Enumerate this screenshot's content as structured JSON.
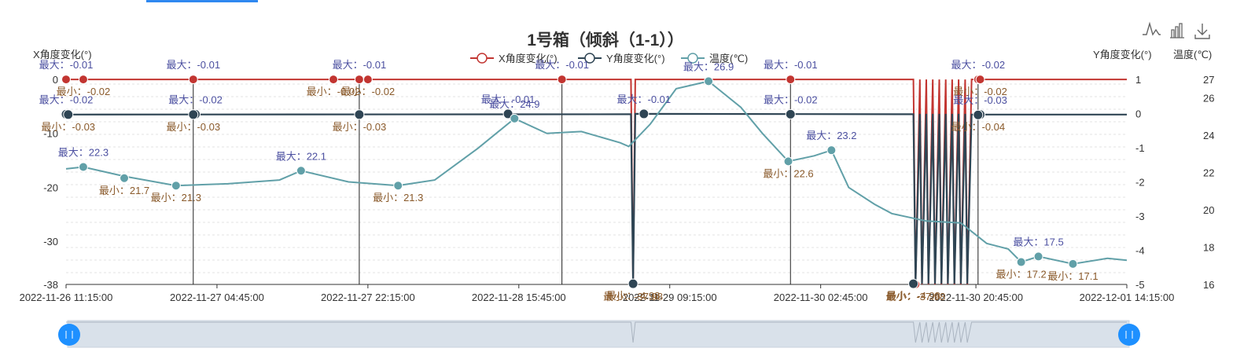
{
  "chart_data": {
    "type": "line",
    "title": "1号箱（倾斜（1-1））",
    "legend_position": "top-center",
    "legend": [
      "X角度变化(°)",
      "Y角度变化(°)",
      "温度(℃)"
    ],
    "grid": true,
    "y_axes": {
      "left": {
        "label": "X角度变化(°)",
        "ticks": [
          "0",
          "-10",
          "-20",
          "-30",
          "-38"
        ],
        "range": [
          -38,
          0
        ]
      },
      "right": {
        "label": "Y角度变化(°)",
        "ticks": [
          "1",
          "0",
          "-1",
          "-2",
          "-3",
          "-4",
          "-5"
        ],
        "range": [
          -5,
          1
        ]
      },
      "right2": {
        "label": "温度(℃)",
        "ticks": [
          "27",
          "26",
          "24",
          "22",
          "20",
          "18",
          "16"
        ],
        "range": [
          16,
          27
        ]
      }
    },
    "x_axis": {
      "range": [
        "2022-11-26 11:15:00",
        "2022-12-01 14:15:00"
      ],
      "ticks": [
        "2022-11-26 11:15:00",
        "2022-11-27 04:45:00",
        "2022-11-27 22:15:00",
        "2022-11-28 15:45:00",
        "2022-11-29 09:15:00",
        "2022-11-30 02:45:00",
        "2022-11-30 20:45:00",
        "2022-12-01 14:15:00"
      ]
    },
    "series": [
      {
        "name": "X角度变化(°)",
        "color": "#c23531",
        "axis": "left",
        "points": [
          [
            "2022-11-26 11:15",
            -0.02
          ],
          [
            "2022-11-29 04:45",
            -0.01
          ],
          [
            "2022-11-29 05:00",
            -37.98
          ],
          [
            "2022-11-29 05:15",
            -0.01
          ],
          [
            "2022-11-30 13:30",
            -0.02
          ],
          [
            "2022-11-30 13:45",
            -37.98
          ],
          [
            "2022-11-30 14:15",
            -0.01
          ],
          [
            "2022-11-30 14:30",
            -37.98
          ],
          [
            "2022-11-30 15:00",
            -0.01
          ],
          [
            "2022-11-30 15:15",
            -37.98
          ],
          [
            "2022-11-30 15:45",
            -0.01
          ],
          [
            "2022-11-30 16:00",
            -37.98
          ],
          [
            "2022-11-30 16:30",
            -0.01
          ],
          [
            "2022-11-30 16:45",
            -37.98
          ],
          [
            "2022-11-30 17:15",
            -0.01
          ],
          [
            "2022-11-30 17:30",
            -37.98
          ],
          [
            "2022-11-30 18:00",
            -0.01
          ],
          [
            "2022-11-30 18:15",
            -37.98
          ],
          [
            "2022-11-30 18:45",
            -0.01
          ],
          [
            "2022-11-30 19:00",
            -37.98
          ],
          [
            "2022-11-30 19:30",
            -0.01
          ],
          [
            "2022-11-30 19:45",
            -37.98
          ],
          [
            "2022-11-30 20:15",
            -0.02
          ],
          [
            "2022-12-01 14:15",
            -0.02
          ]
        ]
      },
      {
        "name": "Y角度变化(°)",
        "color": "#2f4554",
        "axis": "right",
        "points": [
          [
            "2022-11-26 11:15",
            -0.03
          ],
          [
            "2022-11-29 04:45",
            -0.02
          ],
          [
            "2022-11-29 05:00",
            -4.98
          ],
          [
            "2022-11-29 05:15",
            -0.01
          ],
          [
            "2022-11-30 13:30",
            -0.02
          ],
          [
            "2022-11-30 13:45",
            -4.98
          ],
          [
            "2022-11-30 14:15",
            -0.01
          ],
          [
            "2022-11-30 14:30",
            -4.98
          ],
          [
            "2022-11-30 15:00",
            -0.01
          ],
          [
            "2022-11-30 15:15",
            -4.98
          ],
          [
            "2022-11-30 15:45",
            -0.01
          ],
          [
            "2022-11-30 16:00",
            -4.98
          ],
          [
            "2022-11-30 16:30",
            -0.01
          ],
          [
            "2022-11-30 16:45",
            -4.98
          ],
          [
            "2022-11-30 17:15",
            -0.01
          ],
          [
            "2022-11-30 17:30",
            -4.98
          ],
          [
            "2022-11-30 18:00",
            -0.01
          ],
          [
            "2022-11-30 18:15",
            -4.98
          ],
          [
            "2022-11-30 18:45",
            -0.01
          ],
          [
            "2022-11-30 19:00",
            -4.98
          ],
          [
            "2022-11-30 19:30",
            -0.01
          ],
          [
            "2022-11-30 19:45",
            -4.98
          ],
          [
            "2022-11-30 20:15",
            -0.03
          ],
          [
            "2022-12-01 14:15",
            -0.03
          ]
        ]
      },
      {
        "name": "温度(℃)",
        "color": "#61a0a8",
        "axis": "right2",
        "points": [
          [
            "2022-11-26 11:15",
            22.2
          ],
          [
            "2022-11-26 13:15",
            22.3
          ],
          [
            "2022-11-26 18:00",
            21.8
          ],
          [
            "2022-11-27 00:00",
            21.3
          ],
          [
            "2022-11-27 06:00",
            21.4
          ],
          [
            "2022-11-27 12:00",
            21.6
          ],
          [
            "2022-11-27 14:30",
            22.1
          ],
          [
            "2022-11-27 20:00",
            21.5
          ],
          [
            "2022-11-28 01:45",
            21.3
          ],
          [
            "2022-11-28 06:00",
            21.6
          ],
          [
            "2022-11-28 11:00",
            23.3
          ],
          [
            "2022-11-28 15:15",
            24.9
          ],
          [
            "2022-11-28 19:00",
            24.1
          ],
          [
            "2022-11-28 23:00",
            24.2
          ],
          [
            "2022-11-29 03:30",
            23.6
          ],
          [
            "2022-11-29 04:30",
            23.4
          ],
          [
            "2022-11-29 07:00",
            24.6
          ],
          [
            "2022-11-29 10:00",
            26.5
          ],
          [
            "2022-11-29 13:45",
            26.9
          ],
          [
            "2022-11-29 17:30",
            25.5
          ],
          [
            "2022-11-29 20:00",
            24.1
          ],
          [
            "2022-11-29 23:00",
            22.6
          ],
          [
            "2022-11-30 02:00",
            22.9
          ],
          [
            "2022-11-30 04:00",
            23.2
          ],
          [
            "2022-11-30 06:00",
            21.2
          ],
          [
            "2022-11-30 09:00",
            20.3
          ],
          [
            "2022-11-30 11:00",
            19.8
          ],
          [
            "2022-11-30 15:00",
            19.4
          ],
          [
            "2022-11-30 19:00",
            19.3
          ],
          [
            "2022-11-30 22:00",
            18.2
          ],
          [
            "2022-12-01 00:30",
            17.9
          ],
          [
            "2022-12-01 02:00",
            17.2
          ],
          [
            "2022-12-01 04:00",
            17.5
          ],
          [
            "2022-12-01 08:00",
            17.1
          ],
          [
            "2022-12-01 12:00",
            17.4
          ],
          [
            "2022-12-01 14:15",
            17.3
          ]
        ]
      }
    ],
    "annotations": [
      {
        "series": 0,
        "kind": "max",
        "x": "2022-11-26 11:15",
        "value": -0.01,
        "text": "最大：-0.01"
      },
      {
        "series": 0,
        "kind": "min",
        "x": "2022-11-26 13:15",
        "value": -0.02,
        "text": "最小：-0.02"
      },
      {
        "series": 0,
        "kind": "max",
        "x": "2022-11-27 02:00",
        "value": -0.01,
        "text": "最大：-0.01"
      },
      {
        "series": 0,
        "kind": "min",
        "x": "2022-11-27 18:15",
        "value": -0.02,
        "text": "最小：-0.02"
      },
      {
        "series": 0,
        "kind": "max",
        "x": "2022-11-27 21:15",
        "value": -0.01,
        "text": "最大：-0.01"
      },
      {
        "series": 0,
        "kind": "min",
        "x": "2022-11-27 22:15",
        "value": -0.02,
        "text": "最小：-0.02"
      },
      {
        "series": 0,
        "kind": "max",
        "x": "2022-11-28 20:45",
        "value": -0.01,
        "text": "最大：-0.01"
      },
      {
        "series": 0,
        "kind": "min",
        "x": "2022-11-29 05:00",
        "value": -37.98,
        "text": "最小：-37.98"
      },
      {
        "series": 0,
        "kind": "max",
        "x": "2022-11-29 23:15",
        "value": -0.01,
        "text": "最大：-0.01"
      },
      {
        "series": 0,
        "kind": "min",
        "x": "2022-11-30 13:45",
        "value": -37.98,
        "text": "最小：-37.98"
      },
      {
        "series": 0,
        "kind": "max",
        "x": "2022-11-30 21:00",
        "value": -0.02,
        "text": "最大：-0.02"
      },
      {
        "series": 0,
        "kind": "min",
        "x": "2022-11-30 21:15",
        "value": -0.02,
        "text": "最小：-0.02"
      },
      {
        "series": 1,
        "kind": "max",
        "x": "2022-11-26 11:15",
        "value": -0.02,
        "text": "最大：-0.02"
      },
      {
        "series": 1,
        "kind": "min",
        "x": "2022-11-26 11:30",
        "value": -0.03,
        "text": "最小：-0.03"
      },
      {
        "series": 1,
        "kind": "max",
        "x": "2022-11-27 02:15",
        "value": -0.02,
        "text": "最大：-0.02"
      },
      {
        "series": 1,
        "kind": "min",
        "x": "2022-11-27 02:00",
        "value": -0.03,
        "text": "最小：-0.03"
      },
      {
        "series": 1,
        "kind": "min",
        "x": "2022-11-27 21:15",
        "value": -0.03,
        "text": "最小：-0.03"
      },
      {
        "series": 1,
        "kind": "max",
        "x": "2022-11-28 14:30",
        "value": -0.01,
        "text": "最大：-0.01"
      },
      {
        "series": 1,
        "kind": "max",
        "x": "2022-11-29 06:15",
        "value": -0.01,
        "text": "最大：-0.01"
      },
      {
        "series": 1,
        "kind": "min",
        "x": "2022-11-29 05:00",
        "value": -4.98,
        "text": "最小：-4.98"
      },
      {
        "series": 1,
        "kind": "max",
        "x": "2022-11-29 23:15",
        "value": -0.02,
        "text": "最大：-0.02"
      },
      {
        "series": 1,
        "kind": "min",
        "x": "2022-11-30 13:30",
        "value": -4.98,
        "text": "最小：-4.98"
      },
      {
        "series": 1,
        "kind": "max",
        "x": "2022-11-30 21:15",
        "value": -0.03,
        "text": "最大：-0.03"
      },
      {
        "series": 1,
        "kind": "min",
        "x": "2022-11-30 21:00",
        "value": -0.04,
        "text": "最小：-0.04"
      },
      {
        "series": 2,
        "kind": "max",
        "x": "2022-11-26 13:15",
        "value": 22.3,
        "text": "最大：22.3"
      },
      {
        "series": 2,
        "kind": "min",
        "x": "2022-11-26 18:00",
        "value": 21.7,
        "text": "最小：21.7"
      },
      {
        "series": 2,
        "kind": "min",
        "x": "2022-11-27 00:00",
        "value": 21.3,
        "text": "最小：21.3"
      },
      {
        "series": 2,
        "kind": "max",
        "x": "2022-11-27 14:30",
        "value": 22.1,
        "text": "最大：22.1"
      },
      {
        "series": 2,
        "kind": "min",
        "x": "2022-11-28 01:45",
        "value": 21.3,
        "text": "最小：21.3"
      },
      {
        "series": 2,
        "kind": "max",
        "x": "2022-11-28 15:15",
        "value": 24.9,
        "text": "最大：24.9"
      },
      {
        "series": 2,
        "kind": "max",
        "x": "2022-11-29 13:45",
        "value": 26.9,
        "text": "最大：26.9"
      },
      {
        "series": 2,
        "kind": "min",
        "x": "2022-11-29 23:00",
        "value": 22.6,
        "text": "最小：22.6"
      },
      {
        "series": 2,
        "kind": "max",
        "x": "2022-11-30 04:00",
        "value": 23.2,
        "text": "最大：23.2"
      },
      {
        "series": 2,
        "kind": "min",
        "x": "2022-12-01 02:00",
        "value": 17.2,
        "text": "最小：17.2"
      },
      {
        "series": 2,
        "kind": "max",
        "x": "2022-12-01 04:00",
        "value": 17.5,
        "text": "最大：17.5"
      },
      {
        "series": 2,
        "kind": "min",
        "x": "2022-12-01 08:00",
        "value": 17.1,
        "text": "最小：17.1"
      }
    ],
    "mark_lines_x": [
      "2022-11-27 02:00",
      "2022-11-27 21:15",
      "2022-11-28 20:45",
      "2022-11-29 23:15",
      "2022-11-30 21:00"
    ]
  },
  "toolbox": [
    {
      "name": "line-icon"
    },
    {
      "name": "bar-icon"
    },
    {
      "name": "download-icon"
    }
  ],
  "colors": {
    "x": "#c23531",
    "y": "#2f4554",
    "temp": "#61a0a8",
    "max_label": "#4b4fa0",
    "min_label": "#8a5a2b",
    "slider": "#1e90ff"
  }
}
